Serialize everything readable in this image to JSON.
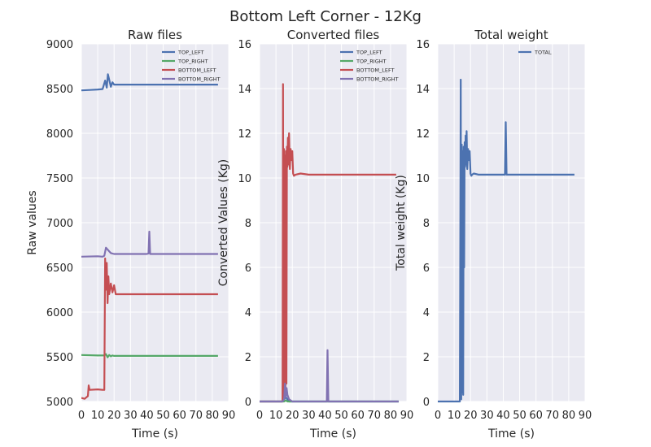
{
  "figure": {
    "title": "Bottom Left Corner - 12Kg"
  },
  "colors": {
    "TOP_LEFT": "#4c72b0",
    "TOP_RIGHT": "#55a868",
    "BOTTOM_LEFT": "#c44e52",
    "BOTTOM_RIGHT": "#8172b2",
    "TOTAL": "#4c72b0",
    "plot_bg": "#eaeaf2",
    "grid": "#ffffff"
  },
  "chart_data": [
    {
      "type": "line",
      "title": "Raw files",
      "xlabel": "Time (s)",
      "ylabel": "Raw values",
      "xlim": [
        0,
        90
      ],
      "ylim": [
        5000,
        9000
      ],
      "xticks": [
        0,
        10,
        20,
        30,
        40,
        50,
        60,
        70,
        80,
        90
      ],
      "yticks": [
        5000,
        5500,
        6000,
        6500,
        7000,
        7500,
        8000,
        8500,
        9000
      ],
      "grid": true,
      "legend": "top-right",
      "series": [
        {
          "name": "TOP_LEFT",
          "x": [
            0,
            10,
            13,
            14.5,
            15.5,
            16.2,
            17,
            18,
            19,
            20,
            30,
            40,
            50,
            60,
            70,
            80,
            83.5
          ],
          "y": [
            8480,
            8490,
            8495,
            8590,
            8510,
            8660,
            8600,
            8520,
            8570,
            8545,
            8545,
            8545,
            8545,
            8545,
            8545,
            8545,
            8545
          ]
        },
        {
          "name": "TOP_RIGHT",
          "x": [
            0,
            10,
            14,
            15,
            16,
            17,
            18,
            19,
            20,
            30,
            40,
            50,
            60,
            70,
            80,
            83.5
          ],
          "y": [
            5520,
            5515,
            5515,
            5530,
            5495,
            5520,
            5505,
            5515,
            5510,
            5510,
            5510,
            5510,
            5510,
            5510,
            5510,
            5510
          ]
        },
        {
          "name": "BOTTOM_LEFT",
          "x": [
            0,
            2,
            4,
            4.5,
            5,
            10,
            13,
            14,
            14.5,
            15,
            15.5,
            16,
            16.5,
            17,
            18,
            19,
            20,
            21,
            22,
            30,
            40,
            50,
            60,
            70,
            80,
            83.5
          ],
          "y": [
            5040,
            5030,
            5060,
            5180,
            5130,
            5135,
            5130,
            5130,
            6600,
            6250,
            6550,
            6100,
            6400,
            6200,
            6320,
            6220,
            6300,
            6200,
            6200,
            6200,
            6200,
            6200,
            6200,
            6200,
            6200,
            6200
          ]
        },
        {
          "name": "BOTTOM_RIGHT",
          "x": [
            0,
            10,
            13,
            14,
            15,
            16,
            17,
            18,
            20,
            30,
            40,
            41,
            41.5,
            42,
            50,
            60,
            70,
            80,
            83.5
          ],
          "y": [
            6620,
            6625,
            6620,
            6630,
            6720,
            6700,
            6680,
            6660,
            6650,
            6650,
            6650,
            6655,
            6900,
            6650,
            6650,
            6650,
            6650,
            6650,
            6650
          ]
        }
      ]
    },
    {
      "type": "line",
      "title": "Converted files",
      "xlabel": "Time (s)",
      "ylabel": "Converted Values (Kg)",
      "xlim": [
        0,
        90
      ],
      "ylim": [
        0,
        16
      ],
      "xticks": [
        0,
        10,
        20,
        30,
        40,
        50,
        60,
        70,
        80,
        90
      ],
      "yticks": [
        0,
        2,
        4,
        6,
        8,
        10,
        12,
        14,
        16
      ],
      "grid": true,
      "legend": "top-right",
      "series": [
        {
          "name": "TOP_LEFT",
          "x": [
            0,
            14,
            15,
            16,
            17,
            18,
            20,
            85
          ],
          "y": [
            0,
            0,
            0.1,
            0.2,
            0.1,
            0,
            0,
            0
          ]
        },
        {
          "name": "TOP_RIGHT",
          "x": [
            0,
            15,
            16,
            17,
            85
          ],
          "y": [
            0,
            0,
            0.05,
            0,
            0
          ]
        },
        {
          "name": "BOTTOM_LEFT",
          "x": [
            0,
            14,
            14.3,
            14.6,
            14.9,
            15.2,
            15.5,
            15.8,
            16.1,
            16.4,
            16.7,
            17,
            17.3,
            17.6,
            18,
            18.5,
            19,
            19.5,
            20,
            20.5,
            21,
            22,
            25,
            30,
            40,
            50,
            60,
            70,
            80,
            83.5
          ],
          "y": [
            0,
            0,
            14.2,
            0.2,
            11.3,
            0.5,
            11,
            0.3,
            11.2,
            0.8,
            11.4,
            10.5,
            11.8,
            10.6,
            12,
            10.4,
            11.3,
            10.8,
            11.2,
            10.2,
            10.1,
            10.15,
            10.2,
            10.15,
            10.15,
            10.15,
            10.15,
            10.15,
            10.15,
            10.15
          ]
        },
        {
          "name": "BOTTOM_RIGHT",
          "x": [
            0,
            14,
            15,
            15.5,
            16,
            16.5,
            17,
            18,
            20,
            40,
            41,
            41.5,
            42,
            50,
            85
          ],
          "y": [
            0,
            0,
            0.1,
            0.8,
            0.2,
            0.6,
            0.3,
            0.1,
            0,
            0,
            0,
            2.3,
            0,
            0,
            0
          ]
        }
      ]
    },
    {
      "type": "line",
      "title": "Total weight",
      "xlabel": "Time (s)",
      "ylabel": "Total weight (Kg)",
      "xlim": [
        0,
        90
      ],
      "ylim": [
        0,
        16
      ],
      "xticks": [
        0,
        10,
        20,
        30,
        40,
        50,
        60,
        70,
        80,
        90
      ],
      "yticks": [
        0,
        2,
        4,
        6,
        8,
        10,
        12,
        14,
        16
      ],
      "grid": true,
      "legend": "top-right",
      "series": [
        {
          "name": "TOTAL",
          "x": [
            0,
            13.5,
            14,
            14.3,
            14.6,
            14.9,
            15.2,
            15.5,
            15.8,
            16.1,
            16.4,
            16.7,
            17,
            17.3,
            17.6,
            18,
            18.5,
            19,
            19.5,
            20,
            20.5,
            21,
            22,
            25,
            30,
            40,
            41,
            41.5,
            42,
            50,
            60,
            70,
            80,
            83.5
          ],
          "y": [
            0,
            0,
            14.4,
            0.1,
            11.5,
            0.4,
            11.2,
            0.3,
            11.4,
            6,
            11.6,
            10.5,
            11.9,
            10.6,
            12.1,
            10.4,
            11.3,
            10.8,
            11.2,
            10.2,
            10.1,
            10.15,
            10.2,
            10.15,
            10.15,
            10.15,
            10.15,
            12.5,
            10.15,
            10.15,
            10.15,
            10.15,
            10.15,
            10.15
          ]
        }
      ]
    }
  ]
}
